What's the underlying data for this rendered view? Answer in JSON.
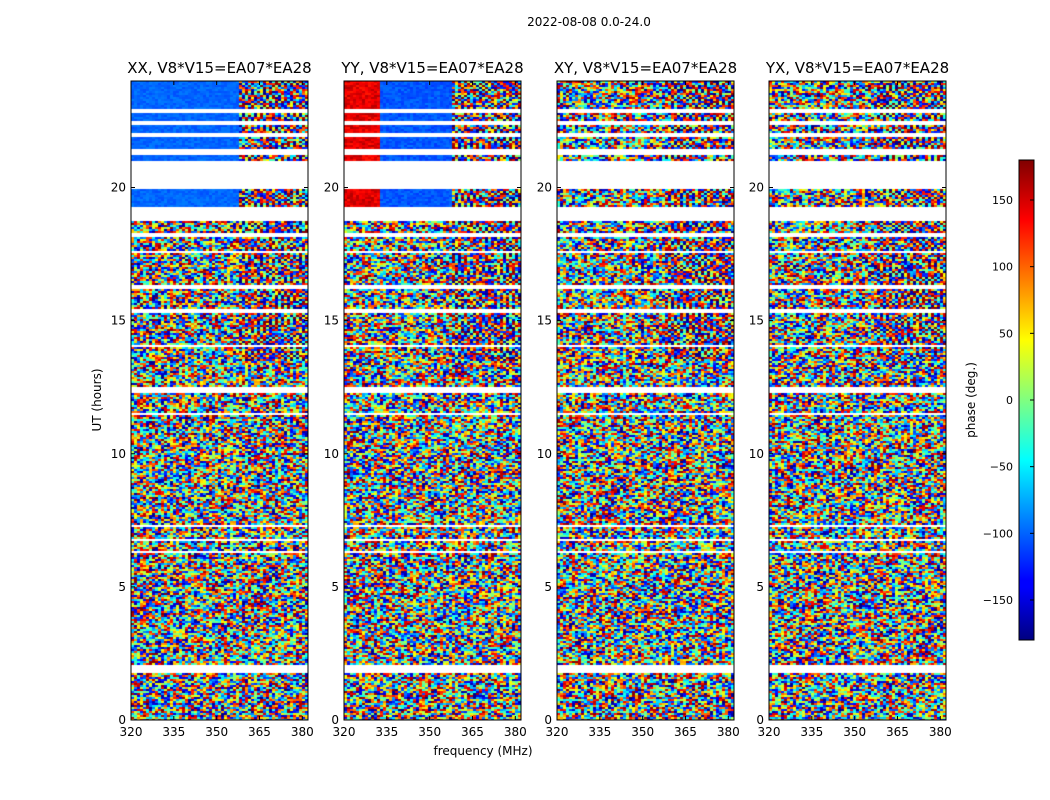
{
  "chart_data": {
    "type": "heatmap",
    "title": "2022-08-08 0.0-24.0",
    "xlabel": "frequency (MHz)",
    "ylabel": "UT (hours)",
    "xlim": [
      320,
      382
    ],
    "ylim": [
      0,
      24
    ],
    "xticks": [
      320,
      335,
      350,
      365,
      380
    ],
    "yticks": [
      0,
      5,
      10,
      15,
      20
    ],
    "panels": [
      {
        "title": "XX, V8*V15=EA07*EA28",
        "polarization": "XX"
      },
      {
        "title": "YY, V8*V15=EA07*EA28",
        "polarization": "YY"
      },
      {
        "title": "XY, V8*V15=EA07*EA28",
        "polarization": "XY"
      },
      {
        "title": "YX, V8*V15=EA07*EA28",
        "polarization": "YX"
      }
    ],
    "flagged_ut_ranges": [
      [
        1.8,
        2.1
      ],
      [
        6.75,
        6.85
      ],
      [
        6.3,
        6.4
      ],
      [
        7.25,
        7.35
      ],
      [
        12.35,
        12.55
      ],
      [
        11.5,
        11.6
      ],
      [
        14.05,
        14.15
      ],
      [
        15.35,
        15.45
      ],
      [
        16.2,
        16.35
      ],
      [
        17.55,
        17.65
      ],
      [
        18.2,
        18.3
      ],
      [
        18.75,
        19.3
      ],
      [
        20.0,
        21.0
      ],
      [
        21.25,
        21.5
      ],
      [
        21.9,
        22.1
      ],
      [
        22.4,
        22.55
      ],
      [
        22.8,
        23.0
      ]
    ],
    "colorbar": {
      "label": "phase (deg.)",
      "range": [
        -180,
        180
      ],
      "ticks": [
        150,
        100,
        50,
        0,
        -50,
        -100,
        -150
      ],
      "colormap": "jet"
    }
  }
}
